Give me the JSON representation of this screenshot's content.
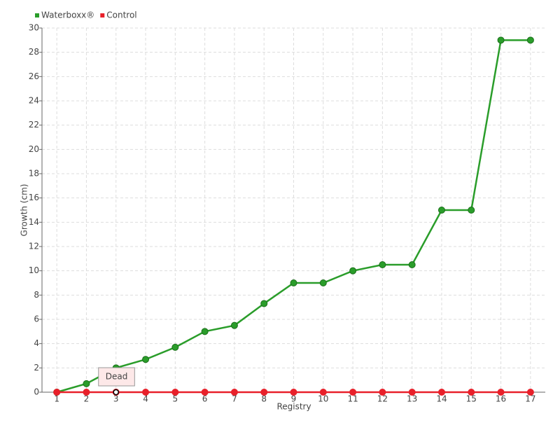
{
  "chart_data": {
    "type": "line",
    "x_label": "Registry",
    "y_label": "Growth (cm)",
    "categories": [
      "1",
      "2",
      "3",
      "4",
      "5",
      "6",
      "7",
      "8",
      "9",
      "10",
      "11",
      "12",
      "13",
      "14",
      "15",
      "16",
      "17"
    ],
    "series": [
      {
        "name": "Waterboxx®",
        "color": "#2a9d2a",
        "values": [
          0,
          0.7,
          2,
          2.7,
          3.7,
          5,
          5.5,
          7.3,
          9,
          9,
          10,
          10.5,
          10.5,
          15,
          15,
          29,
          29
        ]
      },
      {
        "name": "Control",
        "color": "#e8202a",
        "values": [
          0,
          0,
          0,
          0,
          0,
          0,
          0,
          0,
          0,
          0,
          0,
          0,
          0,
          0,
          0,
          0,
          0
        ]
      }
    ],
    "ylim": [
      0,
      30
    ],
    "yticks": [
      0,
      2,
      4,
      6,
      8,
      10,
      12,
      14,
      16,
      18,
      20,
      22,
      24,
      26,
      28,
      30
    ],
    "grid": true,
    "annotations": [
      {
        "text": "Dead",
        "category": "3"
      }
    ]
  }
}
